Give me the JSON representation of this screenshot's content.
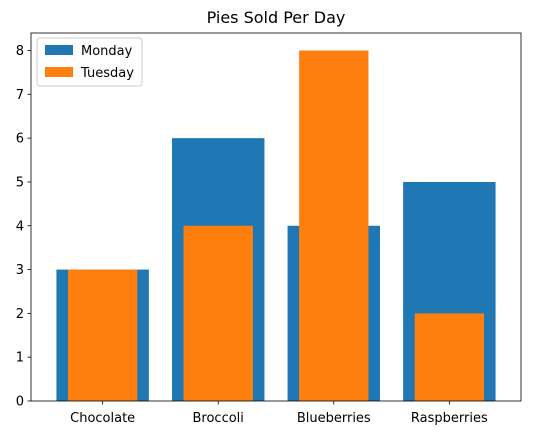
{
  "chart_data": {
    "type": "bar",
    "title": "Pies Sold Per Day",
    "xlabel": "",
    "ylabel": "",
    "categories": [
      "Chocolate",
      "Broccoli",
      "Blueberries",
      "Raspberries"
    ],
    "series": [
      {
        "name": "Monday",
        "values": [
          3,
          6,
          4,
          5
        ],
        "color": "#1f77b4"
      },
      {
        "name": "Tuesday",
        "values": [
          3,
          4,
          8,
          2
        ],
        "color": "#ff7f0e"
      }
    ],
    "ylim": [
      0,
      8.4
    ],
    "yticks": [
      0,
      1,
      2,
      3,
      4,
      5,
      6,
      7,
      8
    ],
    "grid": false,
    "legend_position": "top-left",
    "bar_style": "overlapping (Tuesday narrower, drawn over Monday)"
  }
}
